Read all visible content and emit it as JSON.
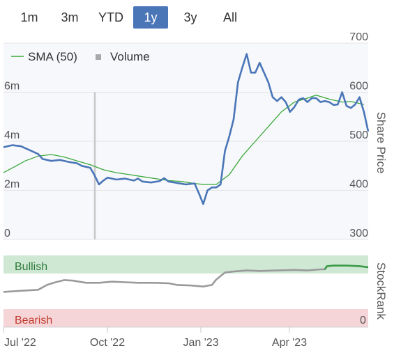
{
  "range_buttons": [
    "1m",
    "3m",
    "YTD",
    "1y",
    "3y",
    "All"
  ],
  "active_range": "1y",
  "legend": {
    "sma_label": "SMA (50)",
    "volume_label": "Volume"
  },
  "colors": {
    "price": "#4a76b8",
    "sma": "#3aa83a",
    "volume": "#c8c8c8",
    "bullish_band": "#cfe8d4",
    "bearish_band": "#f6d5d8",
    "rank_line": "#9a9a9a",
    "rank_bullish_line": "#3a9a45",
    "bullish_text": "#2d7a3a",
    "bearish_text": "#c0392b",
    "active_button": "#4a76b8"
  },
  "labels": {
    "share_price_axis": "Share Price",
    "stockrank_axis": "StockRank",
    "bullish": "Bullish",
    "bearish": "Bearish",
    "rank_zero": "0"
  },
  "chart_data": {
    "type": "line",
    "x_ticks": [
      "Jul '22",
      "Oct '22",
      "Jan '23",
      "Apr '23"
    ],
    "price_axis": {
      "ticks": [
        300,
        400,
        500,
        600,
        700
      ],
      "ylim": [
        300,
        700
      ]
    },
    "volume_axis": {
      "ticks": [
        "0",
        "2m",
        "4m",
        "6m"
      ],
      "values": [
        0,
        2,
        4,
        6
      ],
      "ylim": [
        0,
        8
      ]
    },
    "series": [
      {
        "name": "SMA (50)",
        "values": [
          [
            0,
            436
          ],
          [
            5,
            448
          ],
          [
            10,
            460
          ],
          [
            16,
            470
          ],
          [
            22,
            473
          ],
          [
            28,
            468
          ],
          [
            34,
            460
          ],
          [
            40,
            452
          ],
          [
            46,
            442
          ],
          [
            52,
            436
          ],
          [
            58,
            432
          ],
          [
            64,
            428
          ],
          [
            70,
            424
          ],
          [
            76,
            420
          ],
          [
            82,
            418
          ],
          [
            88,
            414
          ],
          [
            92,
            412
          ],
          [
            98,
            412
          ],
          [
            104,
            432
          ],
          [
            110,
            470
          ],
          [
            116,
            500
          ],
          [
            122,
            530
          ],
          [
            128,
            560
          ],
          [
            134,
            580
          ],
          [
            140,
            588
          ],
          [
            144,
            594
          ],
          [
            150,
            586
          ],
          [
            156,
            580
          ],
          [
            160,
            581
          ],
          [
            166,
            575
          ]
        ]
      },
      {
        "name": "Price",
        "values": [
          [
            0,
            488
          ],
          [
            4,
            492
          ],
          [
            8,
            490
          ],
          [
            12,
            482
          ],
          [
            16,
            474
          ],
          [
            18,
            464
          ],
          [
            22,
            460
          ],
          [
            26,
            462
          ],
          [
            30,
            458
          ],
          [
            34,
            455
          ],
          [
            36,
            450
          ],
          [
            40,
            446
          ],
          [
            42,
            430
          ],
          [
            44,
            412
          ],
          [
            46,
            420
          ],
          [
            48,
            426
          ],
          [
            52,
            422
          ],
          [
            56,
            424
          ],
          [
            60,
            420
          ],
          [
            62,
            424
          ],
          [
            64,
            418
          ],
          [
            68,
            416
          ],
          [
            72,
            419
          ],
          [
            74,
            425
          ],
          [
            76,
            418
          ],
          [
            80,
            415
          ],
          [
            84,
            412
          ],
          [
            88,
            414
          ],
          [
            90,
            394
          ],
          [
            92,
            372
          ],
          [
            94,
            400
          ],
          [
            96,
            406
          ],
          [
            98,
            406
          ],
          [
            100,
            412
          ],
          [
            102,
            480
          ],
          [
            104,
            510
          ],
          [
            106,
            545
          ],
          [
            108,
            620
          ],
          [
            110,
            650
          ],
          [
            112,
            678
          ],
          [
            114,
            640
          ],
          [
            116,
            640
          ],
          [
            118,
            660
          ],
          [
            120,
            640
          ],
          [
            122,
            620
          ],
          [
            124,
            590
          ],
          [
            126,
            582
          ],
          [
            128,
            590
          ],
          [
            130,
            580
          ],
          [
            132,
            560
          ],
          [
            134,
            570
          ],
          [
            136,
            585
          ],
          [
            138,
            588
          ],
          [
            140,
            580
          ],
          [
            142,
            588
          ],
          [
            144,
            588
          ],
          [
            146,
            580
          ],
          [
            148,
            582
          ],
          [
            150,
            580
          ],
          [
            152,
            574
          ],
          [
            154,
            575
          ],
          [
            156,
            600
          ],
          [
            158,
            572
          ],
          [
            160,
            568
          ],
          [
            162,
            575
          ],
          [
            164,
            590
          ],
          [
            166,
            560
          ],
          [
            168,
            520
          ]
        ]
      }
    ],
    "volume_bars": [
      [
        42,
        6.0
      ]
    ],
    "stockrank": {
      "ylim": [
        0,
        100
      ],
      "values": [
        [
          0,
          32
        ],
        [
          8,
          34
        ],
        [
          16,
          36
        ],
        [
          20,
          45
        ],
        [
          24,
          50
        ],
        [
          28,
          54
        ],
        [
          32,
          53
        ],
        [
          38,
          49
        ],
        [
          44,
          49
        ],
        [
          50,
          51
        ],
        [
          56,
          50
        ],
        [
          62,
          49
        ],
        [
          70,
          49
        ],
        [
          76,
          48
        ],
        [
          80,
          45
        ],
        [
          86,
          44
        ],
        [
          92,
          42
        ],
        [
          96,
          45
        ],
        [
          98,
          55
        ],
        [
          102,
          68
        ],
        [
          106,
          70
        ],
        [
          112,
          72
        ],
        [
          118,
          71
        ],
        [
          126,
          72
        ],
        [
          134,
          73
        ],
        [
          140,
          72
        ],
        [
          146,
          74
        ],
        [
          148,
          74
        ],
        [
          149,
          80
        ],
        [
          152,
          81
        ],
        [
          158,
          81
        ],
        [
          164,
          80
        ],
        [
          168,
          78
        ]
      ],
      "bullish_from": 148
    }
  }
}
